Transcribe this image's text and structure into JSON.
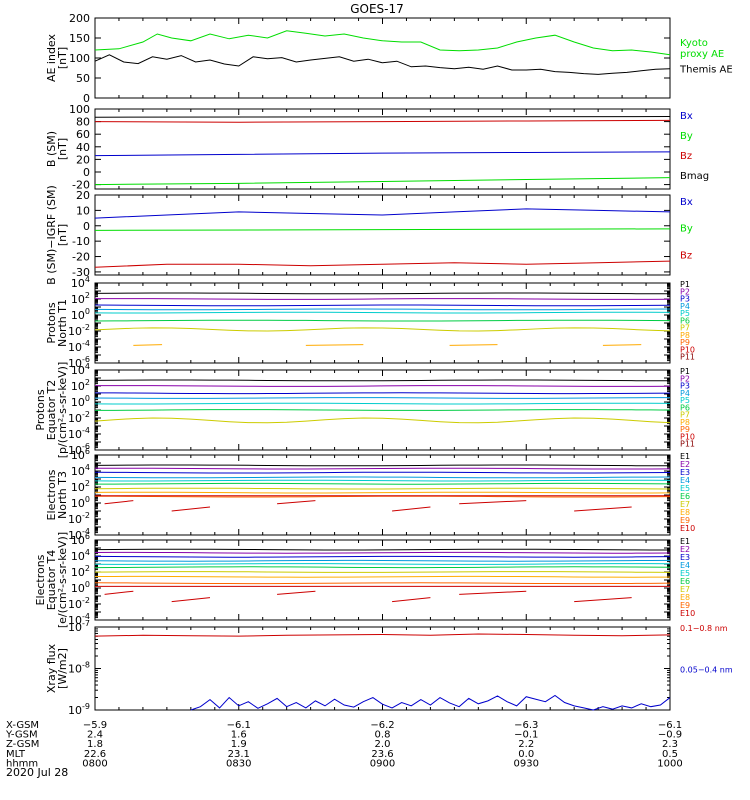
{
  "title": "GOES-17",
  "date_label": "2020 Jul 28",
  "colors": {
    "black": "#000000",
    "green": "#00dd00",
    "blue": "#0000cc",
    "red": "#cc0000"
  },
  "chart_data": [
    {
      "id": "ae",
      "type": "line",
      "ylabel": [
        "AE index",
        "[nT]"
      ],
      "yticks": [
        "0",
        "50",
        "100",
        "150",
        "200"
      ],
      "ylim": [
        0,
        200
      ],
      "x_range": [
        0,
        120
      ],
      "series": [
        {
          "name": "Kyoto proxy AE",
          "label_lines": [
            "Kyoto",
            "proxy AE"
          ],
          "color": "#00dd00",
          "x": [
            0,
            5,
            10,
            13,
            16,
            20,
            24,
            28,
            32,
            36,
            40,
            44,
            48,
            52,
            56,
            60,
            64,
            68,
            72,
            76,
            80,
            84,
            88,
            92,
            96,
            100,
            104,
            108,
            112,
            116,
            120
          ],
          "y": [
            120,
            123,
            140,
            160,
            150,
            143,
            160,
            148,
            157,
            150,
            168,
            162,
            155,
            160,
            150,
            143,
            140,
            140,
            120,
            118,
            120,
            125,
            140,
            150,
            157,
            140,
            125,
            118,
            120,
            115,
            108
          ]
        },
        {
          "name": "Themis AE",
          "label_lines": [
            "Themis AE"
          ],
          "color": "#000000",
          "x": [
            0,
            3,
            6,
            9,
            12,
            15,
            18,
            21,
            24,
            27,
            30,
            33,
            36,
            39,
            42,
            45,
            48,
            51,
            54,
            57,
            60,
            63,
            66,
            69,
            72,
            75,
            78,
            81,
            84,
            87,
            90,
            93,
            96,
            99,
            102,
            105,
            108,
            111,
            114,
            117,
            120
          ],
          "y": [
            92,
            108,
            90,
            86,
            103,
            97,
            106,
            90,
            95,
            85,
            80,
            103,
            98,
            101,
            90,
            95,
            99,
            103,
            92,
            97,
            88,
            92,
            78,
            80,
            76,
            73,
            77,
            72,
            80,
            70,
            70,
            72,
            66,
            64,
            61,
            59,
            62,
            64,
            68,
            72,
            73
          ]
        }
      ]
    },
    {
      "id": "bsm",
      "type": "line",
      "ylabel": [
        "B (SM)",
        "[nT]"
      ],
      "yticks": [
        "-20",
        "0",
        "20",
        "40",
        "60",
        "80",
        "100"
      ],
      "ylim": [
        -27,
        100
      ],
      "x_range": [
        0,
        120
      ],
      "series": [
        {
          "name": "Bx",
          "color": "#0000cc",
          "x": [
            0,
            30,
            60,
            90,
            120
          ],
          "y": [
            26,
            28,
            30,
            31,
            32
          ]
        },
        {
          "name": "By",
          "color": "#00dd00",
          "x": [
            0,
            30,
            60,
            90,
            120
          ],
          "y": [
            -20,
            -18,
            -15,
            -12,
            -9
          ]
        },
        {
          "name": "Bz",
          "color": "#cc0000",
          "x": [
            0,
            30,
            60,
            90,
            120
          ],
          "y": [
            80,
            79,
            80,
            81,
            82
          ]
        },
        {
          "name": "Bmag",
          "color": "#000000",
          "x": [
            0,
            120
          ],
          "y": [
            87,
            88
          ]
        }
      ]
    },
    {
      "id": "bigrf",
      "type": "line",
      "ylabel": [
        "B (SM)−IGRF (SM)",
        "[nT]"
      ],
      "yticks": [
        "-30",
        "-20",
        "-10",
        "0",
        "10",
        "20"
      ],
      "ylim": [
        -32,
        20
      ],
      "x_range": [
        0,
        120
      ],
      "series": [
        {
          "name": "Bx",
          "color": "#0000cc",
          "x": [
            0,
            15,
            30,
            45,
            60,
            75,
            90,
            105,
            120
          ],
          "y": [
            5,
            7,
            9,
            8,
            7,
            9,
            11,
            10,
            9
          ]
        },
        {
          "name": "By",
          "color": "#00dd00",
          "x": [
            0,
            60,
            120
          ],
          "y": [
            -3,
            -2.5,
            -2
          ]
        },
        {
          "name": "Bz",
          "color": "#cc0000",
          "x": [
            0,
            15,
            30,
            45,
            60,
            75,
            90,
            105,
            120
          ],
          "y": [
            -27,
            -25,
            -25,
            -26,
            -25,
            -24,
            -25,
            -24,
            -23
          ]
        }
      ]
    },
    {
      "id": "protons_north",
      "type": "line",
      "log": true,
      "ylabel": [
        "Protons",
        "North T1"
      ],
      "ylim_exp": [
        -6,
        4
      ],
      "ytick_exps": [
        -6,
        -4,
        -2,
        0,
        2,
        4
      ],
      "x_range": [
        0,
        120
      ],
      "series": [
        {
          "name": "P1",
          "color": "#000000",
          "level": 2.7
        },
        {
          "name": "P2",
          "color": "#8800aa",
          "level": 2.0
        },
        {
          "name": "P3",
          "color": "#0000cc",
          "level": 1.2
        },
        {
          "name": "P4",
          "color": "#0099dd",
          "level": 0.7
        },
        {
          "name": "P5",
          "color": "#00cccc",
          "level": 0.3
        },
        {
          "name": "P6",
          "color": "#00cc44",
          "level": -0.7
        },
        {
          "name": "P7",
          "color": "#cccc00",
          "level": -1.8,
          "wiggle": 0.2
        },
        {
          "name": "P8",
          "color": "#ffaa00",
          "level": -3.8,
          "gaps": true
        },
        {
          "name": "P9",
          "color": "#ff6600",
          "level": null
        },
        {
          "name": "P10",
          "color": "#cc0000",
          "level": null
        },
        {
          "name": "P11",
          "color": "#880000",
          "level": null
        }
      ]
    },
    {
      "id": "protons_equator",
      "type": "line",
      "log": true,
      "ylabel": [
        "Protons",
        "Equator T2",
        "[p/(cm²-s-sr-keV)]"
      ],
      "ylim_exp": [
        -6,
        4
      ],
      "ytick_exps": [
        -6,
        -4,
        -2,
        0,
        2,
        4
      ],
      "x_range": [
        0,
        120
      ],
      "series": [
        {
          "name": "P1",
          "color": "#000000",
          "level": 2.7
        },
        {
          "name": "P2",
          "color": "#8800aa",
          "level": 2.0
        },
        {
          "name": "P3",
          "color": "#0000cc",
          "level": 1.1
        },
        {
          "name": "P4",
          "color": "#0099dd",
          "level": 0.5
        },
        {
          "name": "P5",
          "color": "#00cccc",
          "level": -0.2
        },
        {
          "name": "P6",
          "color": "#00cc44",
          "level": -1.0
        },
        {
          "name": "P7",
          "color": "#cccc00",
          "level": -2.3,
          "wiggle": 0.3
        },
        {
          "name": "P8",
          "color": "#ffaa00",
          "level": null
        },
        {
          "name": "P9",
          "color": "#ff6600",
          "level": null
        },
        {
          "name": "P10",
          "color": "#cc0000",
          "level": null
        },
        {
          "name": "P11",
          "color": "#880000",
          "level": null
        }
      ]
    },
    {
      "id": "electrons_north",
      "type": "line",
      "log": true,
      "ylabel": [
        "Electrons",
        "North T3"
      ],
      "ylim_exp": [
        -4,
        6
      ],
      "ytick_exps": [
        -4,
        -2,
        0,
        2,
        4,
        6
      ],
      "x_range": [
        0,
        120
      ],
      "series": [
        {
          "name": "E1",
          "color": "#000000",
          "level": 4.7
        },
        {
          "name": "E2",
          "color": "#8800aa",
          "level": 4.3
        },
        {
          "name": "E3",
          "color": "#0000cc",
          "level": 3.8
        },
        {
          "name": "E4",
          "color": "#0099dd",
          "level": 3.2
        },
        {
          "name": "E5",
          "color": "#00cccc",
          "level": 2.8
        },
        {
          "name": "E6",
          "color": "#00cc44",
          "level": 2.4
        },
        {
          "name": "E7",
          "color": "#cccc00",
          "level": 1.8
        },
        {
          "name": "E8",
          "color": "#ffaa00",
          "level": 1.3
        },
        {
          "name": "E9",
          "color": "#ff6600",
          "level": 0.8
        },
        {
          "name": "E10",
          "color": "#cc0000",
          "level": -0.3,
          "segments": true
        }
      ]
    },
    {
      "id": "electrons_equator",
      "type": "line",
      "log": true,
      "ylabel": [
        "Electrons",
        "Equator T4",
        "[e/(cm²-s-sr-keV)]"
      ],
      "ylim_exp": [
        -4,
        6
      ],
      "ytick_exps": [
        -4,
        -2,
        0,
        2,
        4,
        6
      ],
      "x_range": [
        0,
        120
      ],
      "series": [
        {
          "name": "E1",
          "color": "#000000",
          "level": 4.8
        },
        {
          "name": "E2",
          "color": "#8800aa",
          "level": 4.4
        },
        {
          "name": "E3",
          "color": "#0000cc",
          "level": 3.9
        },
        {
          "name": "E4",
          "color": "#0099dd",
          "level": 3.4
        },
        {
          "name": "E5",
          "color": "#00cccc",
          "level": 3.0
        },
        {
          "name": "E6",
          "color": "#00cc44",
          "level": 2.6
        },
        {
          "name": "E7",
          "color": "#cccc00",
          "level": 2.0
        },
        {
          "name": "E8",
          "color": "#ffaa00",
          "level": 1.4
        },
        {
          "name": "E9",
          "color": "#ff6600",
          "level": 0.6
        },
        {
          "name": "E10",
          "color": "#cc0000",
          "level": -1.0,
          "segments": true
        }
      ]
    },
    {
      "id": "xray",
      "type": "line",
      "log": true,
      "ylabel": [
        "Xray flux",
        "[W/m2]"
      ],
      "ylim_exp": [
        -9,
        -7
      ],
      "ytick_exps": [
        -9,
        -8,
        -7
      ],
      "x_range": [
        0,
        120
      ],
      "series": [
        {
          "name": "0.1−0.8 nm",
          "color": "#cc0000",
          "x": [
            0,
            10,
            20,
            30,
            40,
            50,
            60,
            70,
            80,
            90,
            100,
            110,
            120
          ],
          "y": [
            -7.22,
            -7.2,
            -7.21,
            -7.22,
            -7.2,
            -7.19,
            -7.18,
            -7.2,
            -7.17,
            -7.18,
            -7.2,
            -7.21,
            -7.19
          ]
        },
        {
          "name": "0.05−0.4 nm",
          "color": "#0000cc",
          "x": [
            20,
            22,
            24,
            26,
            28,
            30,
            32,
            34,
            36,
            38,
            40,
            42,
            44,
            46,
            48,
            50,
            52,
            54,
            56,
            58,
            60,
            62,
            64,
            66,
            68,
            70,
            72,
            74,
            76,
            78,
            80,
            82,
            84,
            86,
            88,
            90,
            92,
            94,
            96,
            98,
            100,
            102,
            104,
            106,
            108,
            110,
            112,
            114,
            116,
            118,
            120
          ],
          "y": [
            -9.0,
            -8.92,
            -8.75,
            -8.95,
            -8.7,
            -8.9,
            -8.8,
            -8.96,
            -8.85,
            -8.72,
            -8.92,
            -8.82,
            -8.95,
            -8.78,
            -8.9,
            -8.74,
            -8.88,
            -8.93,
            -8.8,
            -8.7,
            -8.86,
            -8.95,
            -8.82,
            -8.9,
            -8.75,
            -8.88,
            -8.7,
            -8.83,
            -8.92,
            -8.72,
            -8.85,
            -8.78,
            -8.66,
            -8.8,
            -8.9,
            -8.68,
            -8.74,
            -8.8,
            -8.65,
            -8.82,
            -8.9,
            -8.95,
            -9.0,
            -8.92,
            -8.98,
            -8.9,
            -8.95,
            -8.85,
            -8.92,
            -8.88,
            -8.7
          ]
        }
      ]
    }
  ],
  "time_axis": {
    "row_labels": [
      "X-GSM",
      "Y-GSM",
      "Z-GSM",
      "MLT",
      "hhmm"
    ],
    "columns": [
      {
        "time_min": 0,
        "values": [
          "−5.9",
          "2.4",
          "1.8",
          "22.6",
          "0800"
        ]
      },
      {
        "time_min": 30,
        "values": [
          "−6.1",
          "1.6",
          "1.9",
          "23.1",
          "0830"
        ]
      },
      {
        "time_min": 60,
        "values": [
          "−6.2",
          "0.8",
          "2.0",
          "23.6",
          "0900"
        ]
      },
      {
        "time_min": 90,
        "values": [
          "−6.3",
          "−0.1",
          "2.2",
          "0.0",
          "0930"
        ]
      },
      {
        "time_min": 120,
        "values": [
          "−6.1",
          "−0.9",
          "2.3",
          "0.5",
          "1000"
        ]
      }
    ]
  }
}
